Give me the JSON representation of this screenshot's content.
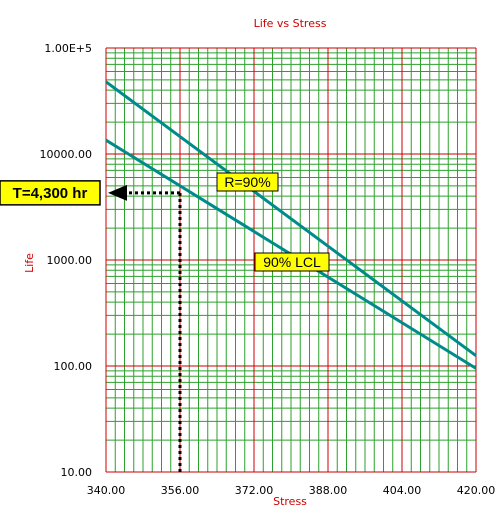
{
  "chart_data": {
    "type": "line",
    "title": "Life vs Stress",
    "xlabel": "Stress",
    "ylabel": "Life",
    "xlim": [
      340,
      420
    ],
    "ylim": [
      10,
      100000
    ],
    "yscale": "log",
    "x_tick_labels": [
      "340.00",
      "356.00",
      "372.00",
      "388.00",
      "404.00",
      "420.00"
    ],
    "y_tick_labels": [
      "10.00",
      "100.00",
      "1000.00",
      "10000.00",
      "1.00E+5"
    ],
    "grid": true,
    "series": [
      {
        "name": "R=90%",
        "x": [
          340,
          420
        ],
        "y": [
          48000,
          125
        ]
      },
      {
        "name": "90% LCL",
        "x": [
          340,
          420
        ],
        "y": [
          13500,
          95
        ]
      }
    ],
    "annotations": {
      "t_label": "T=4,300 hr",
      "t_value": 4300,
      "t_stress": 356
    },
    "colors": {
      "major_grid": "#cc0000",
      "minor_grid": "#2ca02c",
      "series": "#008b8b",
      "label_bg": "#ffff00"
    }
  }
}
